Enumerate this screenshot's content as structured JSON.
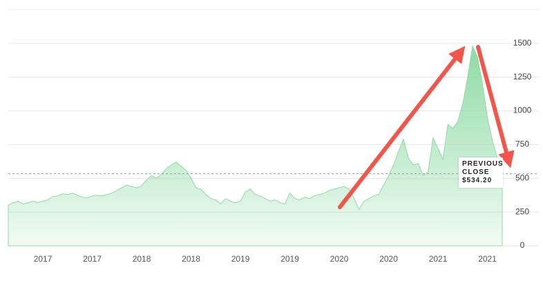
{
  "chart_data": {
    "type": "area",
    "categories": [
      null,
      null,
      null,
      null,
      null,
      null,
      null,
      "2017",
      null,
      null,
      null,
      null,
      null,
      null,
      null,
      null,
      null,
      "2017",
      null,
      null,
      null,
      null,
      null,
      null,
      null,
      null,
      null,
      "2018",
      null,
      null,
      null,
      null,
      null,
      null,
      null,
      null,
      null,
      "2018",
      null,
      null,
      null,
      null,
      null,
      null,
      null,
      null,
      null,
      "2019",
      null,
      null,
      null,
      null,
      null,
      null,
      null,
      null,
      null,
      "2019",
      null,
      null,
      null,
      null,
      null,
      null,
      null,
      null,
      null,
      "2020",
      null,
      null,
      null,
      null,
      null,
      null,
      null,
      null,
      null,
      "2020",
      null,
      null,
      null,
      null,
      null,
      null,
      null,
      null,
      null,
      "2021",
      null,
      null,
      null,
      null,
      null,
      null,
      null,
      null,
      null,
      "2021",
      null,
      null,
      null
    ],
    "values": [
      300,
      320,
      330,
      310,
      320,
      330,
      320,
      330,
      340,
      365,
      370,
      385,
      380,
      390,
      375,
      360,
      355,
      370,
      375,
      370,
      380,
      390,
      410,
      430,
      450,
      440,
      430,
      445,
      490,
      520,
      500,
      530,
      570,
      600,
      620,
      590,
      560,
      500,
      430,
      420,
      380,
      350,
      340,
      310,
      350,
      330,
      320,
      330,
      400,
      420,
      380,
      370,
      350,
      330,
      340,
      320,
      310,
      390,
      350,
      340,
      360,
      350,
      370,
      380,
      390,
      410,
      420,
      430,
      440,
      420,
      350,
      270,
      330,
      350,
      370,
      380,
      450,
      520,
      600,
      700,
      790,
      650,
      600,
      610,
      520,
      550,
      800,
      720,
      640,
      900,
      870,
      920,
      1050,
      1250,
      1480,
      1400,
      1200,
      950,
      780,
      650,
      540
    ],
    "color": "#8edba5",
    "ylim": [
      0,
      1750
    ],
    "yticks": [
      0,
      250,
      500,
      750,
      1000,
      1250,
      1500
    ],
    "grid": true,
    "previous_close": {
      "label": "PREVIOUS CLOSE",
      "value": 534.2,
      "value_label": "$534.20"
    }
  }
}
